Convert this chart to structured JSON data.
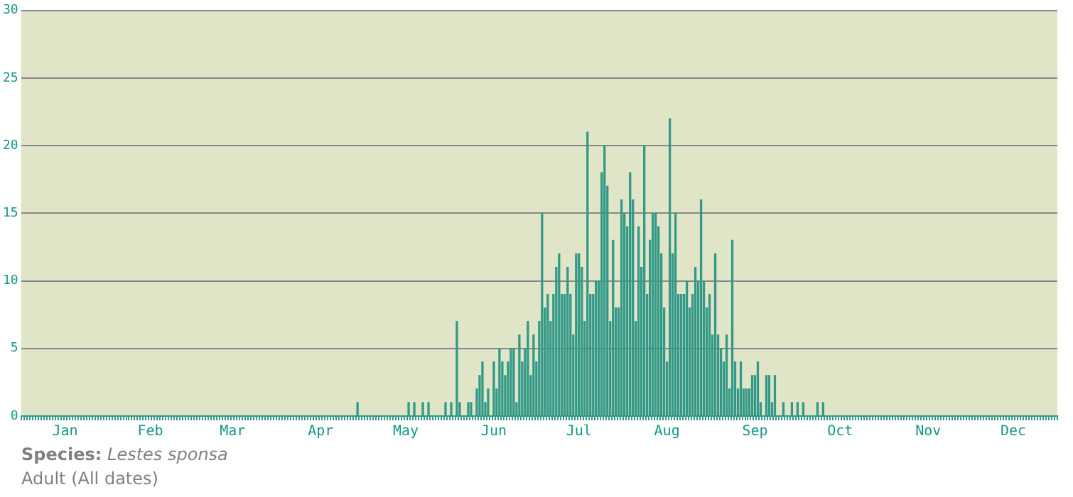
{
  "chart_data": {
    "type": "bar",
    "categories": [
      null,
      null,
      null,
      null,
      null,
      null,
      null,
      null,
      null,
      null,
      null,
      null,
      null,
      null,
      null,
      "Jan",
      null,
      null,
      null,
      null,
      null,
      null,
      null,
      null,
      null,
      null,
      null,
      null,
      null,
      null,
      null,
      null,
      null,
      null,
      null,
      null,
      null,
      null,
      null,
      null,
      null,
      null,
      null,
      null,
      null,
      "Feb",
      null,
      null,
      null,
      null,
      null,
      null,
      null,
      null,
      null,
      null,
      null,
      null,
      null,
      null,
      null,
      null,
      null,
      null,
      null,
      null,
      null,
      null,
      null,
      null,
      null,
      null,
      null,
      null,
      "Mar",
      null,
      null,
      null,
      null,
      null,
      null,
      null,
      null,
      null,
      null,
      null,
      null,
      null,
      null,
      null,
      null,
      null,
      null,
      null,
      null,
      null,
      null,
      null,
      null,
      null,
      null,
      null,
      null,
      null,
      null,
      "Apr",
      null,
      null,
      null,
      null,
      null,
      null,
      null,
      null,
      null,
      null,
      null,
      null,
      null,
      null,
      null,
      null,
      null,
      null,
      null,
      null,
      null,
      null,
      null,
      null,
      null,
      null,
      null,
      null,
      null,
      "May",
      null,
      null,
      null,
      null,
      null,
      null,
      null,
      null,
      null,
      null,
      null,
      null,
      null,
      null,
      null,
      null,
      null,
      null,
      null,
      null,
      null,
      null,
      null,
      null,
      null,
      null,
      null,
      null,
      null,
      null,
      "Jun",
      null,
      null,
      null,
      null,
      null,
      null,
      null,
      null,
      null,
      null,
      null,
      null,
      null,
      null,
      null,
      null,
      null,
      null,
      null,
      null,
      null,
      null,
      null,
      null,
      null,
      null,
      null,
      null,
      null,
      "Jul",
      null,
      null,
      null,
      null,
      null,
      null,
      null,
      null,
      null,
      null,
      null,
      null,
      null,
      null,
      null,
      null,
      null,
      null,
      null,
      null,
      null,
      null,
      null,
      null,
      null,
      null,
      null,
      null,
      null,
      null,
      "Aug",
      null,
      null,
      null,
      null,
      null,
      null,
      null,
      null,
      null,
      null,
      null,
      null,
      null,
      null,
      null,
      null,
      null,
      null,
      null,
      null,
      null,
      null,
      null,
      null,
      null,
      null,
      null,
      null,
      null,
      null,
      "Sep",
      null,
      null,
      null,
      null,
      null,
      null,
      null,
      null,
      null,
      null,
      null,
      null,
      null,
      null,
      null,
      null,
      null,
      null,
      null,
      null,
      null,
      null,
      null,
      null,
      null,
      null,
      null,
      null,
      null,
      "Oct",
      null,
      null,
      null,
      null,
      null,
      null,
      null,
      null,
      null,
      null,
      null,
      null,
      null,
      null,
      null,
      null,
      null,
      null,
      null,
      null,
      null,
      null,
      null,
      null,
      null,
      null,
      null,
      null,
      null,
      null,
      "Nov",
      null,
      null,
      null,
      null,
      null,
      null,
      null,
      null,
      null,
      null,
      null,
      null,
      null,
      null,
      null,
      null,
      null,
      null,
      null,
      null,
      null,
      null,
      null,
      null,
      null,
      null,
      null,
      null,
      null,
      "Dec",
      null,
      null,
      null,
      null,
      null,
      null,
      null,
      null,
      null,
      null,
      null,
      null,
      null,
      null,
      null
    ],
    "values": [
      0,
      0,
      0,
      0,
      0,
      0,
      0,
      0,
      0,
      0,
      0,
      0,
      0,
      0,
      0,
      0,
      0,
      0,
      0,
      0,
      0,
      0,
      0,
      0,
      0,
      0,
      0,
      0,
      0,
      0,
      0,
      0,
      0,
      0,
      0,
      0,
      0,
      0,
      0,
      0,
      0,
      0,
      0,
      0,
      0,
      0,
      0,
      0,
      0,
      0,
      0,
      0,
      0,
      0,
      0,
      0,
      0,
      0,
      0,
      0,
      0,
      0,
      0,
      0,
      0,
      0,
      0,
      0,
      0,
      0,
      0,
      0,
      0,
      0,
      0,
      0,
      0,
      0,
      0,
      0,
      0,
      0,
      0,
      0,
      0,
      0,
      0,
      0,
      0,
      0,
      0,
      0,
      0,
      0,
      0,
      0,
      0,
      0,
      0,
      0,
      0,
      0,
      0,
      0,
      0,
      0,
      0,
      0,
      0,
      0,
      0,
      0,
      0,
      0,
      0,
      0,
      0,
      0,
      1,
      0,
      0,
      0,
      0,
      0,
      0,
      0,
      0,
      0,
      0,
      0,
      0,
      0,
      0,
      0,
      0,
      0,
      1,
      0,
      1,
      0,
      0,
      1,
      0,
      1,
      0,
      0,
      0,
      0,
      0,
      1,
      0,
      1,
      0,
      7,
      1,
      0,
      0,
      1,
      1,
      0,
      2,
      3,
      4,
      1,
      2,
      0,
      4,
      2,
      5,
      4,
      3,
      4,
      5,
      5,
      1,
      6,
      4,
      5,
      7,
      3,
      6,
      4,
      7,
      15,
      8,
      9,
      7,
      9,
      11,
      12,
      9,
      9,
      11,
      9,
      6,
      12,
      12,
      11,
      7,
      21,
      9,
      9,
      10,
      10,
      18,
      20,
      17,
      7,
      13,
      8,
      8,
      16,
      15,
      14,
      18,
      16,
      7,
      14,
      11,
      20,
      9,
      13,
      15,
      15,
      14,
      12,
      8,
      4,
      22,
      12,
      15,
      9,
      9,
      9,
      10,
      8,
      9,
      11,
      10,
      16,
      10,
      8,
      9,
      6,
      12,
      6,
      5,
      4,
      6,
      2,
      13,
      4,
      2,
      4,
      2,
      2,
      2,
      3,
      3,
      4,
      1,
      0,
      3,
      3,
      1,
      3,
      0,
      0,
      1,
      0,
      0,
      1,
      0,
      1,
      0,
      1,
      0,
      0,
      0,
      0,
      1,
      0,
      1,
      0,
      0,
      0,
      0,
      0,
      0,
      0,
      0,
      0,
      0,
      0,
      0,
      0,
      0,
      0,
      0,
      0,
      0,
      0,
      0,
      0,
      0,
      0,
      0,
      0,
      0,
      0,
      0,
      0,
      0,
      0,
      0,
      0,
      0,
      0,
      0,
      0,
      0,
      0,
      0,
      0,
      0,
      0,
      0,
      0,
      0,
      0,
      0,
      0,
      0,
      0,
      0,
      0,
      0,
      0,
      0,
      0,
      0,
      0,
      0,
      0,
      0,
      0,
      0,
      0,
      0,
      0,
      0,
      0,
      0,
      0,
      0,
      0,
      0,
      0,
      0,
      0,
      0,
      0,
      0,
      0,
      0
    ],
    "color": "#339988",
    "ylim": [
      0,
      30
    ],
    "yticks": [
      0,
      5,
      10,
      15,
      20,
      25,
      30
    ],
    "grid": "y",
    "annotations": [
      "Species: Lestes sponsa",
      "Adult (All dates)"
    ]
  }
}
